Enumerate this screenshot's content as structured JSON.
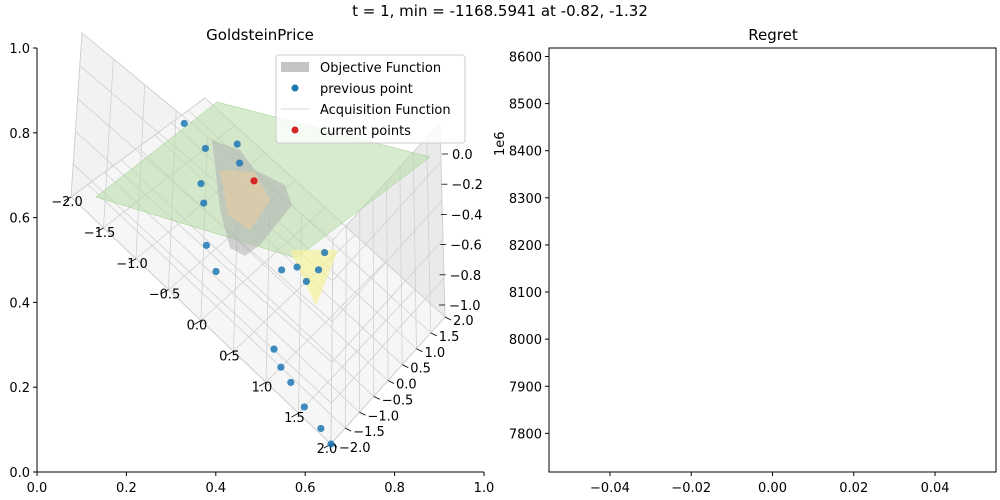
{
  "figure": {
    "suptitle": "t = 1, min = -1168.5941 at -0.82, -1.32"
  },
  "chart_data": [
    {
      "type": "scatter",
      "title": "GoldsteinPrice",
      "projection": "3d",
      "frame_axes": {
        "x_ticks": [
          "0.0",
          "0.2",
          "0.4",
          "0.6",
          "0.8",
          "1.0"
        ],
        "y_ticks": [
          "0.0",
          "0.2",
          "0.4",
          "0.6",
          "0.8",
          "1.0"
        ]
      },
      "axis3d": {
        "x_ticks": [
          "−2.0",
          "−1.5",
          "−1.0",
          "−0.5",
          "0.0",
          "0.5",
          "1.0",
          "1.5",
          "2.0"
        ],
        "y_ticks": [
          "−2.0",
          "−1.5",
          "−1.0",
          "−0.5",
          "0.0",
          "0.5",
          "1.0",
          "1.5",
          "2.0"
        ],
        "z_ticks": [
          "0.0",
          "−0.2",
          "−0.4",
          "−0.6",
          "−0.8",
          "−1.0"
        ],
        "z_offset_label": "1e6"
      },
      "legend": {
        "position": "top-right",
        "entries": [
          {
            "label": "Objective Function",
            "color": "#c4c4c4",
            "marker": "patch"
          },
          {
            "label": "previous point",
            "color": "#1f77b4",
            "marker": "dot"
          },
          {
            "label": "Acquisition Function",
            "color": "#d8d8d8",
            "marker": "line"
          },
          {
            "label": "current points",
            "color": "#d62728",
            "marker": "dot"
          }
        ]
      },
      "series": [
        {
          "name": "previous point",
          "color": "#1f77b4",
          "points": [
            {
              "x": -1.9,
              "y": -1.2
            },
            {
              "x": -1.5,
              "y": -1.1
            },
            {
              "x": -1.2,
              "y": -0.4
            },
            {
              "x": -1.3,
              "y": -1.7
            },
            {
              "x": -1.1,
              "y": -1.4
            },
            {
              "x": -1.0,
              "y": -0.1
            },
            {
              "x": -0.6,
              "y": 0.6
            },
            {
              "x": -0.3,
              "y": 0.9
            },
            {
              "x": 0.2,
              "y": -0.2
            },
            {
              "x": 0.3,
              "y": -0.5
            },
            {
              "x": 0.5,
              "y": -0.4
            },
            {
              "x": 0.5,
              "y": -0.8
            },
            {
              "x": 0.4,
              "y": -1.2
            },
            {
              "x": 0.8,
              "y": 1.3
            },
            {
              "x": 1.0,
              "y": 1.5
            },
            {
              "x": 1.2,
              "y": 1.6
            },
            {
              "x": 1.5,
              "y": 1.8
            },
            {
              "x": 1.8,
              "y": 1.9
            },
            {
              "x": 2.0,
              "y": 2.0
            }
          ]
        },
        {
          "name": "current points",
          "color": "#d62728",
          "points": [
            {
              "x": -0.82,
              "y": -1.32
            }
          ]
        }
      ]
    },
    {
      "type": "line",
      "title": "Regret",
      "x_ticks": [
        "−0.04",
        "−0.02",
        "0.00",
        "0.02",
        "0.04"
      ],
      "y_ticks": [
        "7800",
        "7900",
        "8000",
        "8100",
        "8200",
        "8300",
        "8400",
        "8500",
        "8600"
      ],
      "xlim": [
        -0.055,
        0.055
      ],
      "ylim": [
        7718,
        8618
      ],
      "series": []
    }
  ]
}
